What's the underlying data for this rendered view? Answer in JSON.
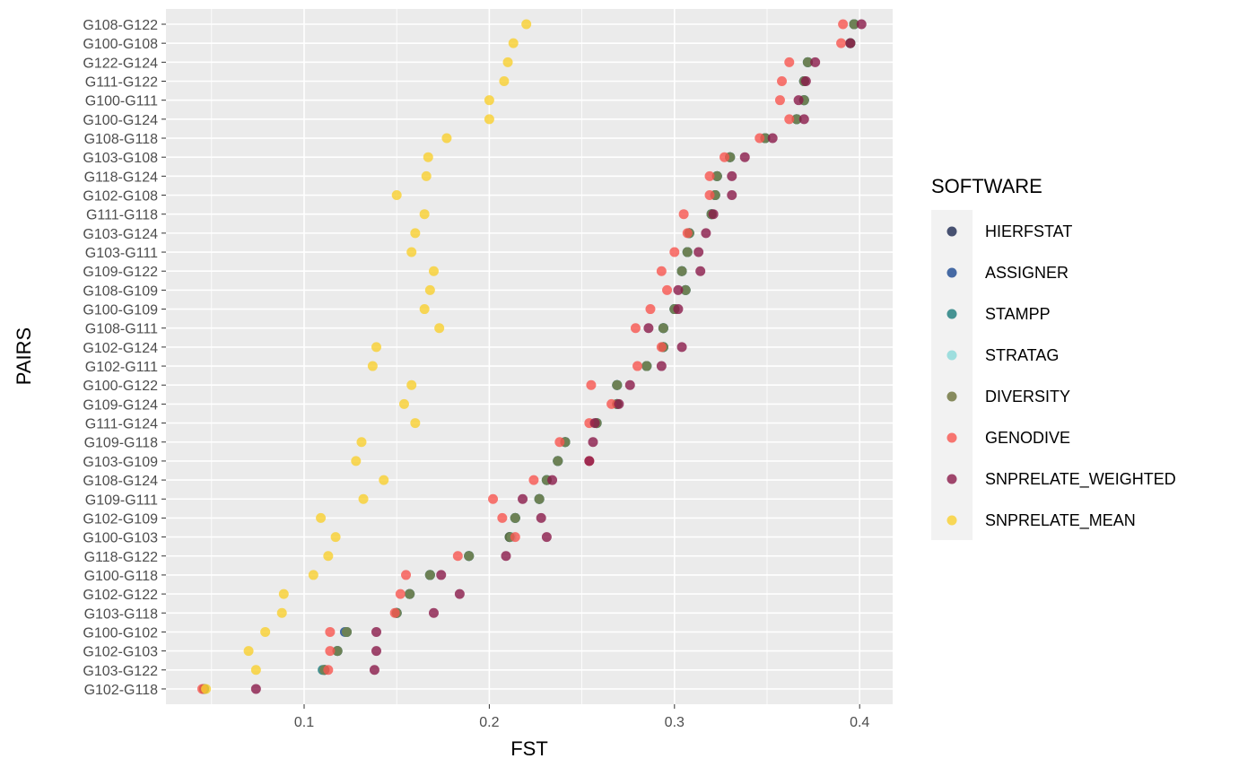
{
  "chart_data": {
    "type": "scatter",
    "title": "",
    "xlabel": "FST",
    "ylabel": "PAIRS",
    "xlim": [
      0.03,
      0.42
    ],
    "xticks": [
      0.1,
      0.2,
      0.3,
      0.4
    ],
    "xtick_labels": [
      "0.1",
      "0.2",
      "0.3",
      "0.4"
    ],
    "grid": true,
    "legend": {
      "title": "SOFTWARE",
      "position": "right"
    },
    "pairs": [
      "G108-G122",
      "G100-G108",
      "G122-G124",
      "G111-G122",
      "G100-G111",
      "G100-G124",
      "G108-G118",
      "G103-G108",
      "G118-G124",
      "G102-G108",
      "G111-G118",
      "G103-G124",
      "G103-G111",
      "G109-G122",
      "G108-G109",
      "G100-G109",
      "G108-G111",
      "G102-G124",
      "G102-G111",
      "G100-G122",
      "G109-G124",
      "G111-G124",
      "G109-G118",
      "G103-G109",
      "G108-G124",
      "G109-G111",
      "G102-G109",
      "G100-G103",
      "G118-G122",
      "G100-G118",
      "G102-G122",
      "G103-G118",
      "G100-G102",
      "G102-G103",
      "G103-G122",
      "G102-G118"
    ],
    "series": [
      {
        "name": "HIERFSTAT",
        "color": "#1c2850",
        "values": [
          0.397,
          0.395,
          0.372,
          0.37,
          0.37,
          0.366,
          0.349,
          0.33,
          0.323,
          0.322,
          0.32,
          0.308,
          0.307,
          0.304,
          0.306,
          0.3,
          0.294,
          0.294,
          0.285,
          0.269,
          0.269,
          0.258,
          0.241,
          0.237,
          0.231,
          0.227,
          0.214,
          0.211,
          0.189,
          0.168,
          0.157,
          0.15,
          0.123,
          0.118,
          0.111,
          0.046
        ]
      },
      {
        "name": "ASSIGNER",
        "color": "#1a4790",
        "values": [
          0.397,
          0.395,
          0.372,
          0.37,
          0.37,
          0.366,
          0.349,
          0.33,
          0.323,
          0.322,
          0.32,
          0.308,
          0.307,
          0.304,
          0.306,
          0.3,
          0.294,
          0.294,
          0.285,
          0.269,
          0.269,
          0.258,
          0.241,
          0.237,
          0.231,
          0.227,
          0.214,
          0.211,
          0.189,
          0.168,
          0.157,
          0.15,
          0.122,
          0.118,
          0.111,
          0.046
        ]
      },
      {
        "name": "STAMPP",
        "color": "#1a7a7a",
        "values": [
          0.397,
          0.395,
          0.372,
          0.37,
          0.37,
          0.366,
          0.349,
          0.33,
          0.323,
          0.322,
          0.32,
          0.308,
          0.307,
          0.304,
          0.306,
          0.3,
          0.294,
          0.294,
          0.285,
          0.269,
          0.269,
          0.258,
          0.241,
          0.237,
          0.231,
          0.227,
          0.214,
          0.211,
          0.189,
          0.168,
          0.157,
          0.15,
          0.123,
          0.118,
          0.11,
          0.046
        ]
      },
      {
        "name": "STRATAG",
        "color": "#88d8d8",
        "values": [
          0.397,
          0.395,
          0.372,
          0.37,
          0.37,
          0.366,
          0.349,
          0.33,
          0.323,
          0.322,
          0.32,
          0.308,
          0.307,
          0.304,
          0.306,
          0.3,
          0.294,
          0.294,
          0.285,
          0.269,
          0.269,
          0.258,
          0.241,
          0.237,
          0.231,
          0.227,
          0.214,
          0.212,
          0.189,
          0.168,
          0.157,
          0.15,
          0.123,
          0.118,
          0.111,
          0.046
        ]
      },
      {
        "name": "DIVERSITY",
        "color": "#6b7038",
        "values": [
          0.397,
          0.395,
          0.372,
          0.37,
          0.37,
          0.366,
          0.349,
          0.33,
          0.323,
          0.322,
          0.32,
          0.308,
          0.307,
          0.304,
          0.306,
          0.3,
          0.294,
          0.294,
          0.285,
          0.269,
          0.269,
          0.258,
          0.241,
          0.237,
          0.231,
          0.227,
          0.214,
          0.211,
          0.189,
          0.168,
          0.157,
          0.15,
          0.123,
          0.118,
          0.111,
          0.046
        ]
      },
      {
        "name": "GENODIVE",
        "color": "#f8554f",
        "values": [
          0.391,
          0.39,
          0.362,
          0.358,
          0.357,
          0.362,
          0.346,
          0.327,
          0.319,
          0.319,
          0.305,
          0.307,
          0.3,
          0.293,
          0.296,
          0.287,
          0.279,
          0.293,
          0.28,
          0.255,
          0.266,
          0.254,
          0.238,
          0.254,
          0.224,
          0.202,
          0.207,
          0.214,
          0.183,
          0.155,
          0.152,
          0.149,
          0.114,
          0.114,
          0.113,
          0.045
        ]
      },
      {
        "name": "SNPRELATE_WEIGHTED",
        "color": "#8a1a4a",
        "values": [
          0.401,
          0.395,
          0.376,
          0.371,
          0.367,
          0.37,
          0.353,
          0.338,
          0.331,
          0.331,
          0.321,
          0.317,
          0.313,
          0.314,
          0.302,
          0.302,
          0.286,
          0.304,
          0.293,
          0.276,
          0.27,
          0.257,
          0.256,
          0.254,
          0.234,
          0.218,
          0.228,
          0.231,
          0.209,
          0.174,
          0.184,
          0.17,
          0.139,
          0.139,
          0.138,
          0.074
        ]
      },
      {
        "name": "SNPRELATE_MEAN",
        "color": "#f9d02e",
        "values": [
          0.22,
          0.213,
          0.21,
          0.208,
          0.2,
          0.2,
          0.177,
          0.167,
          0.166,
          0.15,
          0.165,
          0.16,
          0.158,
          0.17,
          0.168,
          0.165,
          0.173,
          0.139,
          0.137,
          0.158,
          0.154,
          0.16,
          0.131,
          0.128,
          0.143,
          0.132,
          0.109,
          0.117,
          0.113,
          0.105,
          0.089,
          0.088,
          0.079,
          0.07,
          0.074,
          0.047
        ]
      }
    ]
  }
}
